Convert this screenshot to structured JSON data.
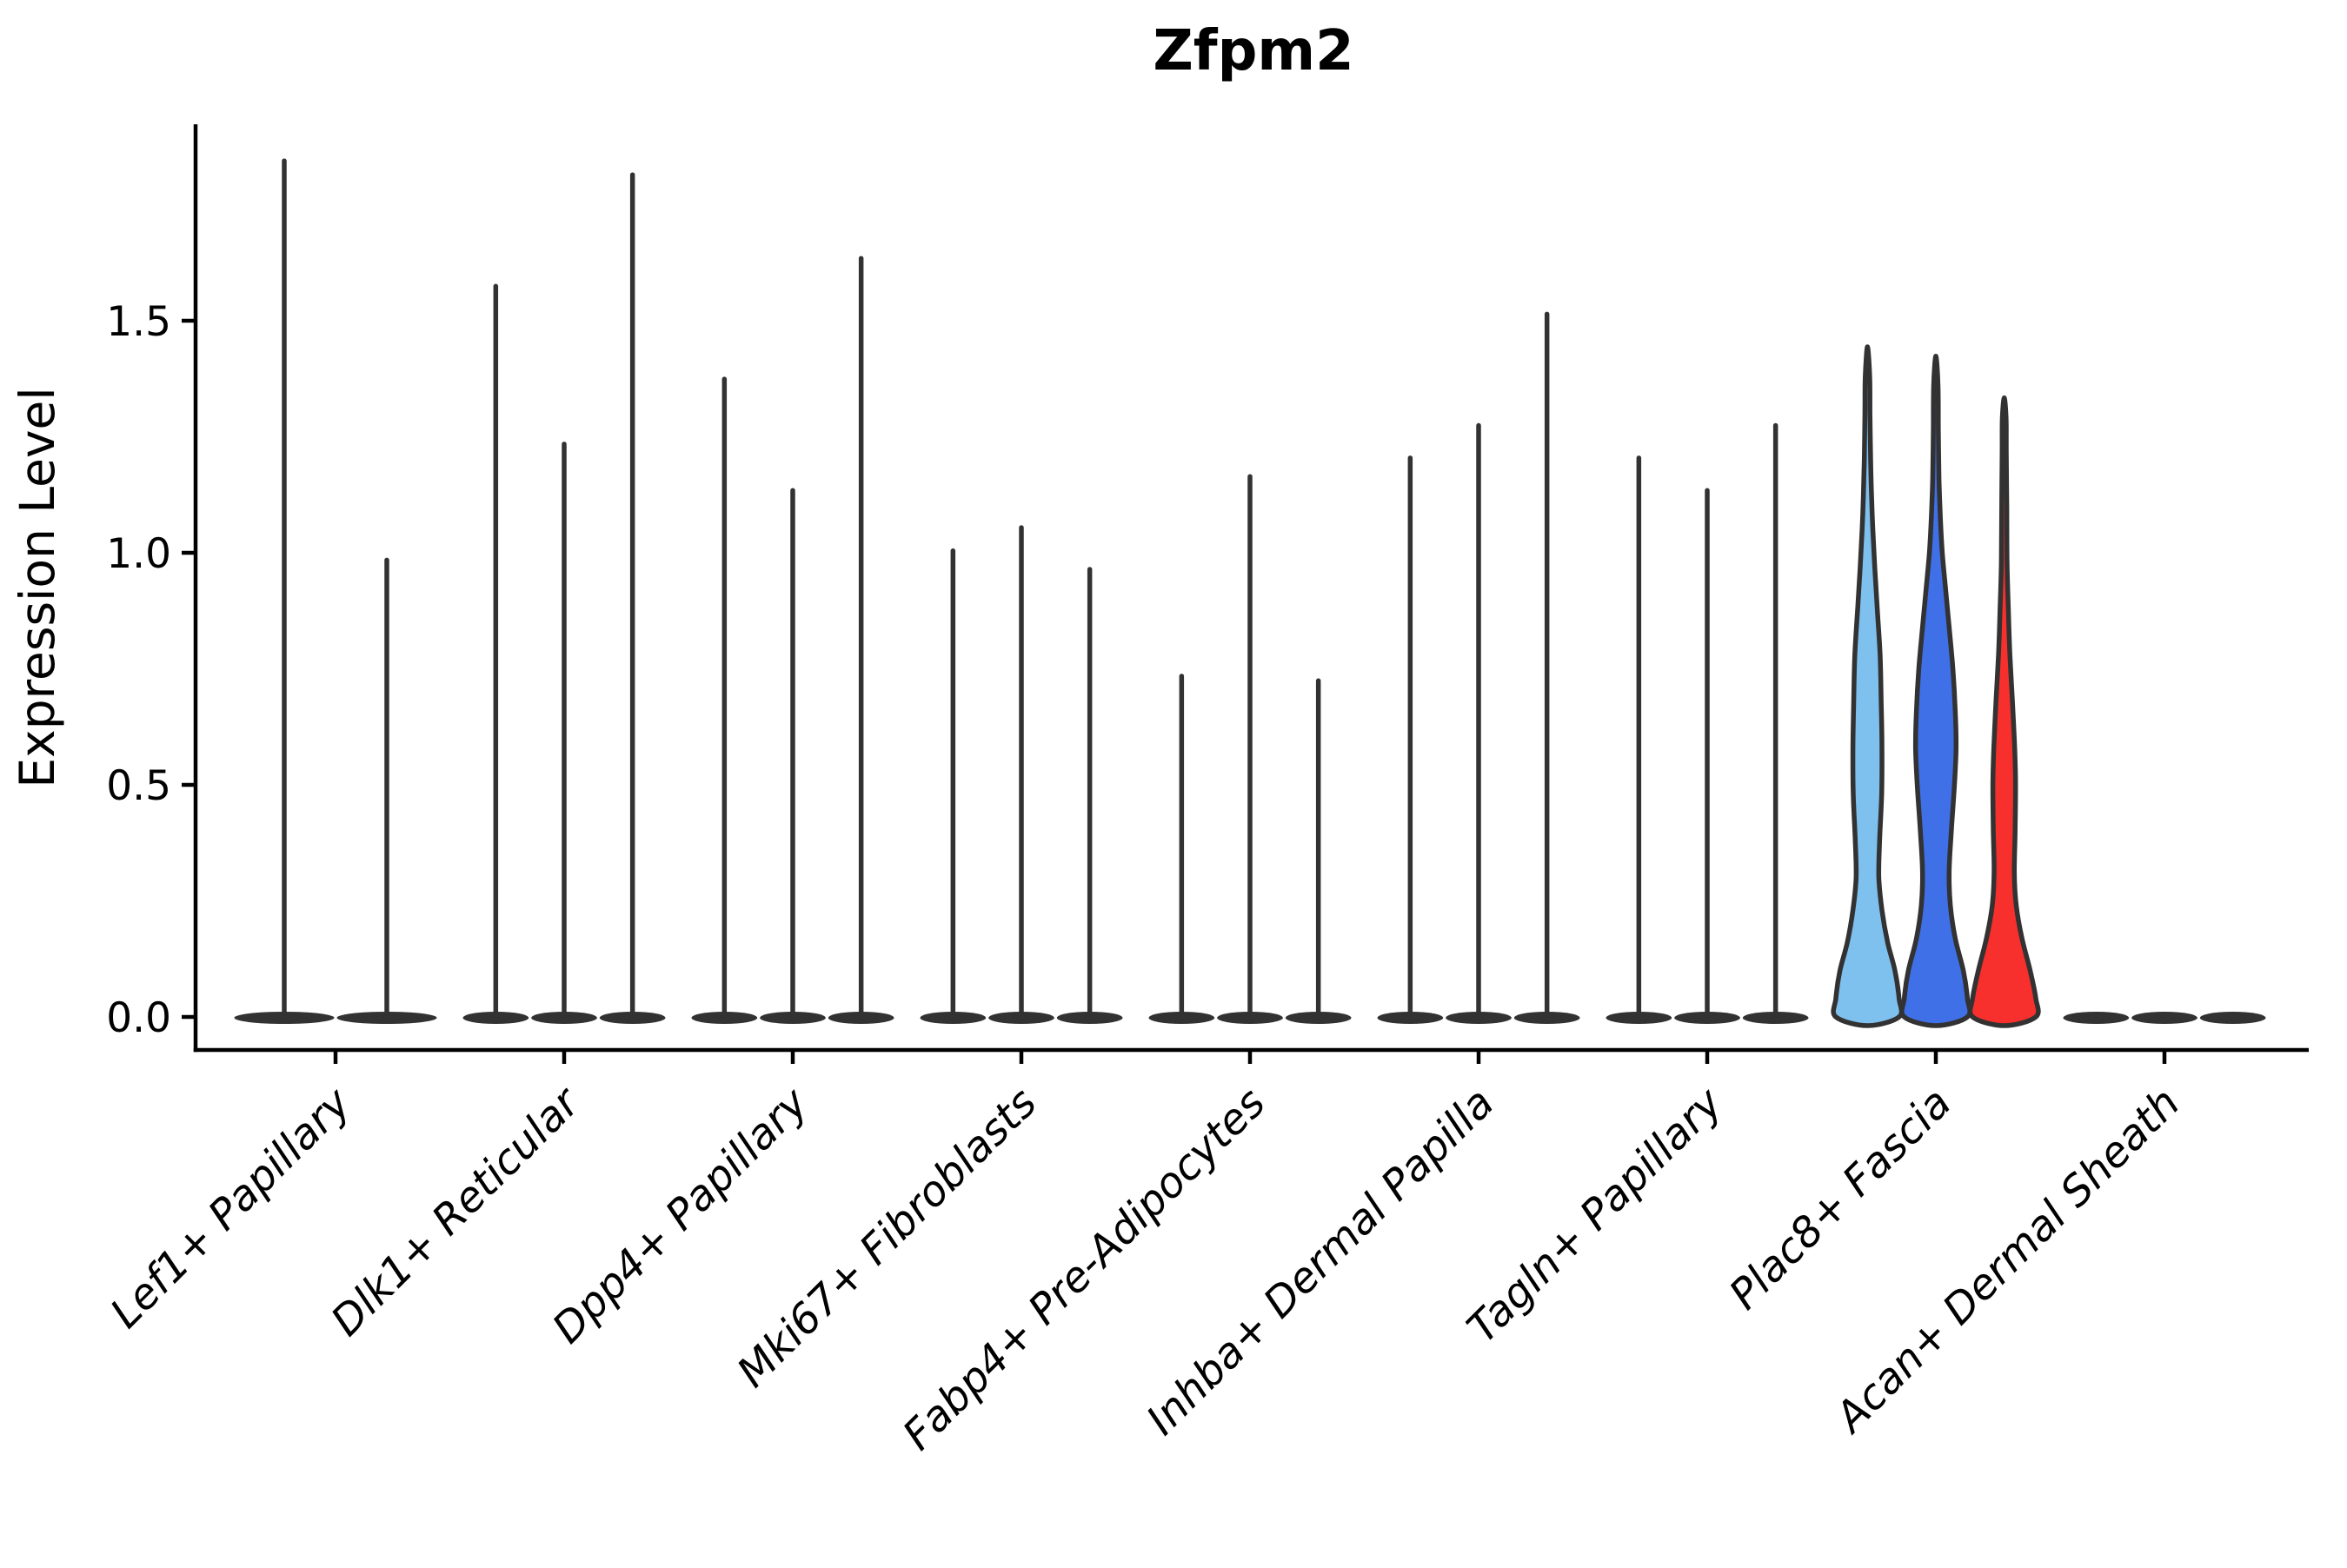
{
  "title": "Zfpm2",
  "axes": {
    "ylabel": "Expression Level",
    "ytick_labels": [
      "0.0",
      "0.5",
      "1.0",
      "1.5"
    ]
  },
  "chart_data": {
    "type": "violin",
    "title": "Zfpm2",
    "xlabel": "",
    "ylabel": "Expression Level",
    "ylim": [
      0,
      1.93
    ],
    "yticks": [
      0.0,
      0.5,
      1.0,
      1.5
    ],
    "grid": false,
    "legend": false,
    "outline_color": "#323232",
    "categories": [
      "Lef1+ Papillary",
      "Dlk1+ Reticular",
      "Dpp4+ Papillary",
      "Mki67+ Fibroblasts",
      "Fabp4+ Pre-Adipocytes",
      "Inhba+ Dermal Papilla",
      "Tagln+ Papillary",
      "Plac8+ Fascia",
      "Acan+ Dermal Sheath"
    ],
    "groups": [
      {
        "category": "Lef1+ Papillary",
        "violins": [
          {
            "max": 1.85
          },
          {
            "max": 0.99
          }
        ]
      },
      {
        "category": "Dlk1+ Reticular",
        "violins": [
          {
            "max": 1.58
          },
          {
            "max": 1.24
          },
          {
            "max": 1.82
          }
        ]
      },
      {
        "category": "Dpp4+ Papillary",
        "violins": [
          {
            "max": 1.38
          },
          {
            "max": 1.14
          },
          {
            "max": 1.64
          }
        ]
      },
      {
        "category": "Mki67+ Fibroblasts",
        "violins": [
          {
            "max": 1.01
          },
          {
            "max": 1.06
          },
          {
            "max": 0.97
          }
        ]
      },
      {
        "category": "Fabp4+ Pre-Adipocytes",
        "violins": [
          {
            "max": 0.74
          },
          {
            "max": 1.17
          },
          {
            "max": 0.73
          }
        ]
      },
      {
        "category": "Inhba+ Dermal Papilla",
        "violins": [
          {
            "max": 1.21
          },
          {
            "max": 1.28
          },
          {
            "max": 1.52
          }
        ]
      },
      {
        "category": "Tagln+ Papillary",
        "violins": [
          {
            "max": 1.21
          },
          {
            "max": 1.14
          },
          {
            "max": 1.28
          }
        ]
      },
      {
        "category": "Plac8+ Fascia",
        "violins": [
          {
            "max": 1.44,
            "fill": "#7EC0EE",
            "profile": [
              [
                0.0,
                1.0
              ],
              [
                0.04,
                1.02
              ],
              [
                0.1,
                0.87
              ],
              [
                0.16,
                0.64
              ],
              [
                0.23,
                0.46
              ],
              [
                0.3,
                0.36
              ],
              [
                0.38,
                0.385
              ],
              [
                0.48,
                0.45
              ],
              [
                0.58,
                0.46
              ],
              [
                0.68,
                0.435
              ],
              [
                0.78,
                0.4
              ],
              [
                0.88,
                0.31
              ],
              [
                0.97,
                0.23
              ],
              [
                1.05,
                0.17
              ],
              [
                1.12,
                0.13
              ],
              [
                1.2,
                0.1
              ],
              [
                1.3,
                0.08
              ],
              [
                1.38,
                0.07
              ],
              [
                1.44,
                0.0
              ]
            ]
          },
          {
            "max": 1.42,
            "fill": "#4070E8",
            "profile": [
              [
                0.0,
                1.0
              ],
              [
                0.04,
                1.02
              ],
              [
                0.1,
                0.87
              ],
              [
                0.17,
                0.61
              ],
              [
                0.24,
                0.46
              ],
              [
                0.31,
                0.42
              ],
              [
                0.4,
                0.49
              ],
              [
                0.5,
                0.59
              ],
              [
                0.58,
                0.64
              ],
              [
                0.66,
                0.615
              ],
              [
                0.75,
                0.54
              ],
              [
                0.83,
                0.435
              ],
              [
                0.92,
                0.31
              ],
              [
                1.0,
                0.205
              ],
              [
                1.08,
                0.14
              ],
              [
                1.16,
                0.1
              ],
              [
                1.26,
                0.08
              ],
              [
                1.36,
                0.07
              ],
              [
                1.42,
                0.0
              ]
            ]
          },
          {
            "max": 1.33,
            "fill": "#F8302D",
            "profile": [
              [
                0.0,
                1.0
              ],
              [
                0.04,
                1.02
              ],
              [
                0.1,
                0.82
              ],
              [
                0.17,
                0.56
              ],
              [
                0.24,
                0.38
              ],
              [
                0.31,
                0.32
              ],
              [
                0.4,
                0.345
              ],
              [
                0.5,
                0.36
              ],
              [
                0.58,
                0.33
              ],
              [
                0.68,
                0.26
              ],
              [
                0.78,
                0.18
              ],
              [
                0.88,
                0.13
              ],
              [
                0.98,
                0.09
              ],
              [
                1.1,
                0.08
              ],
              [
                1.22,
                0.065
              ],
              [
                1.29,
                0.06
              ],
              [
                1.33,
                0.0
              ]
            ]
          }
        ]
      },
      {
        "category": "Acan+ Dermal Sheath",
        "violins": [
          {
            "max": 0
          },
          {
            "max": 0
          },
          {
            "max": 0
          }
        ]
      }
    ]
  }
}
